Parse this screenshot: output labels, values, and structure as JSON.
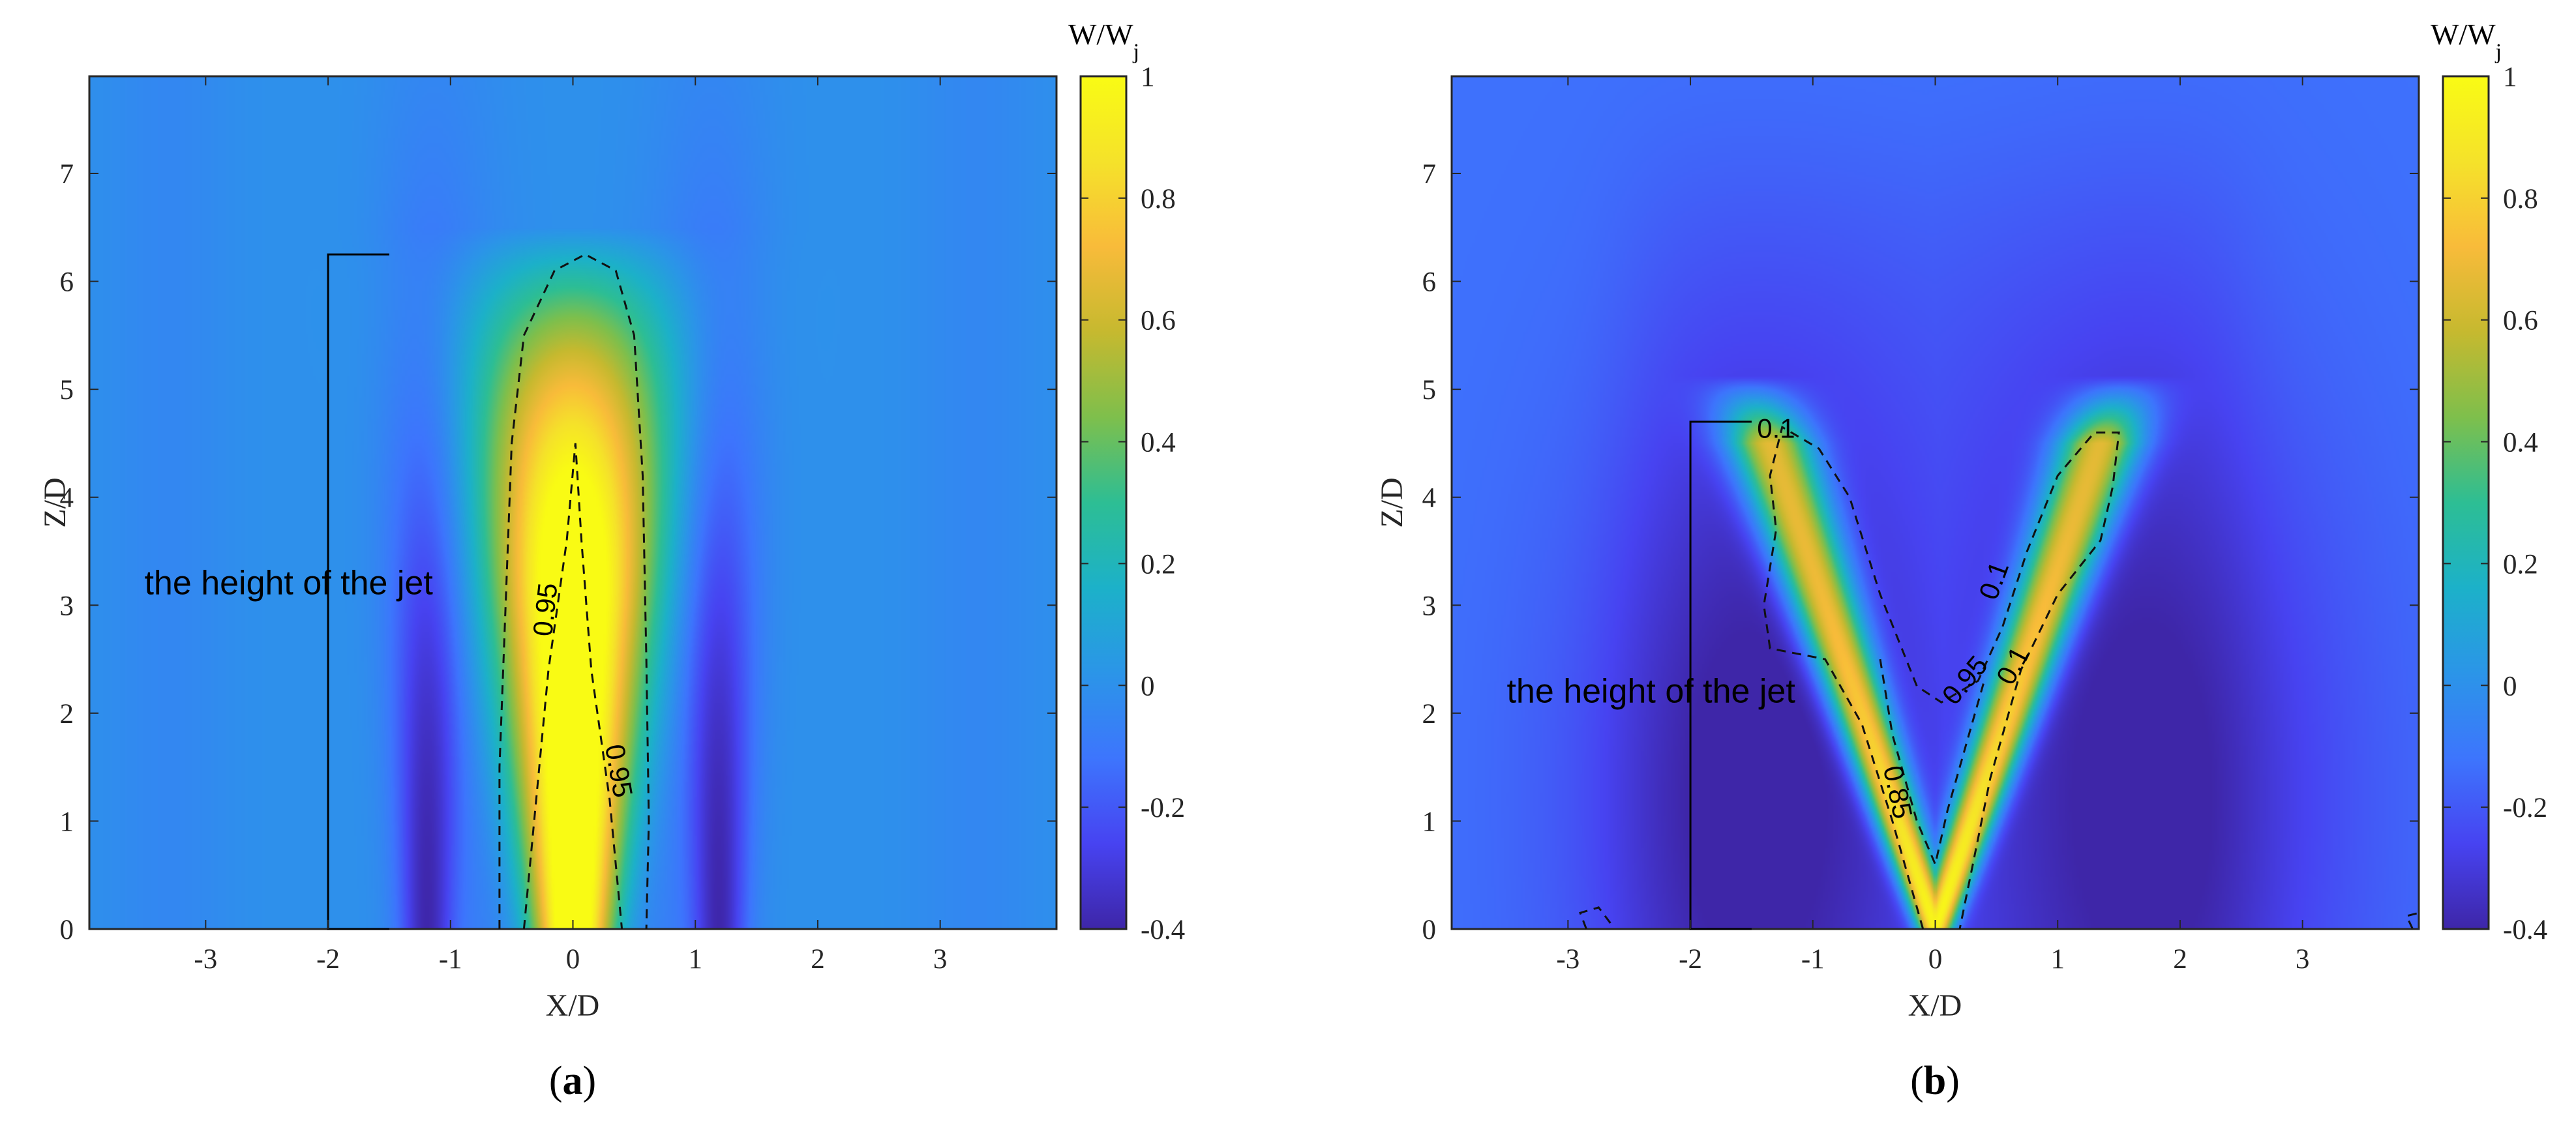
{
  "colors": {
    "scale": [
      "#3e26a8",
      "#4743f1",
      "#3d75fd",
      "#2b95e8",
      "#1cb1c9",
      "#2dbe94",
      "#7ebf4c",
      "#c6b92f",
      "#f8bb3a",
      "#f5e22a",
      "#f9fb14"
    ],
    "contour_line": "#000000",
    "axis": "#262626"
  },
  "chart_data": [
    {
      "type": "heatmap",
      "panel_label": "(a)",
      "panel_label_bold": "a",
      "xlabel": "X/D",
      "ylabel": "Z/D",
      "xlim": [
        -3.95,
        3.95
      ],
      "ylim": [
        0,
        7.9
      ],
      "xticks": [
        -3,
        -2,
        -1,
        0,
        1,
        2,
        3
      ],
      "xtick_labels": [
        "-3",
        "-2",
        "-1",
        "0",
        "1",
        "2",
        "3"
      ],
      "yticks": [
        0,
        1,
        2,
        3,
        4,
        5,
        6,
        7
      ],
      "ytick_labels": [
        "0",
        "1",
        "2",
        "3",
        "4",
        "5",
        "6",
        "7"
      ],
      "colorbar": {
        "title": "W/W",
        "title_sub": "j",
        "range": [
          -0.4,
          1
        ],
        "ticks": [
          -0.4,
          -0.2,
          0,
          0.2,
          0.4,
          0.6,
          0.8,
          1
        ],
        "tick_labels": [
          "-0.4",
          "-0.2",
          "0",
          "0.2",
          "0.4",
          "0.6",
          "0.8",
          "1"
        ]
      },
      "field": "single_jet",
      "annotation": {
        "text": "the height of the jet",
        "x": -3.5,
        "y": 3.1
      },
      "jet_height_bracket": {
        "x": -2.0,
        "x_end": -1.5,
        "z_top": 6.25
      },
      "contour_labels": [
        {
          "text": "0.95",
          "x": -0.15,
          "y": 2.95,
          "angle": -84
        },
        {
          "text": "0.95",
          "x": 0.3,
          "y": 1.45,
          "angle": 80
        }
      ]
    },
    {
      "type": "heatmap",
      "panel_label": "(b)",
      "panel_label_bold": "b",
      "xlabel": "X/D",
      "ylabel": "Z/D",
      "xlim": [
        -3.95,
        3.95
      ],
      "ylim": [
        0,
        7.9
      ],
      "xticks": [
        -3,
        -2,
        -1,
        0,
        1,
        2,
        3
      ],
      "xtick_labels": [
        "-3",
        "-2",
        "-1",
        "0",
        "1",
        "2",
        "3"
      ],
      "yticks": [
        0,
        1,
        2,
        3,
        4,
        5,
        6,
        7
      ],
      "ytick_labels": [
        "0",
        "1",
        "2",
        "3",
        "4",
        "5",
        "6",
        "7"
      ],
      "colorbar": {
        "title": "W/W",
        "title_sub": "j",
        "range": [
          -0.4,
          1
        ],
        "ticks": [
          -0.4,
          -0.2,
          0,
          0.2,
          0.4,
          0.6,
          0.8,
          1
        ],
        "tick_labels": [
          "-0.4",
          "-0.2",
          "0",
          "0.2",
          "0.4",
          "0.6",
          "0.8",
          "1"
        ]
      },
      "field": "v_jet",
      "annotation": {
        "text": "the height of the jet",
        "x": -3.5,
        "y": 2.1
      },
      "jet_height_bracket": {
        "x": -2.0,
        "x_end": -1.5,
        "z_top": 4.7
      },
      "contour_labels": [
        {
          "text": "0.1",
          "x": -1.3,
          "y": 4.55,
          "angle": 0
        },
        {
          "text": "0.1",
          "x": 0.55,
          "y": 3.2,
          "angle": -70
        },
        {
          "text": "0.95",
          "x": 0.3,
          "y": 2.25,
          "angle": -50
        },
        {
          "text": "0.1",
          "x": 0.7,
          "y": 2.4,
          "angle": -62
        },
        {
          "text": "0.85",
          "x": -0.38,
          "y": 1.25,
          "angle": 78
        }
      ]
    }
  ]
}
